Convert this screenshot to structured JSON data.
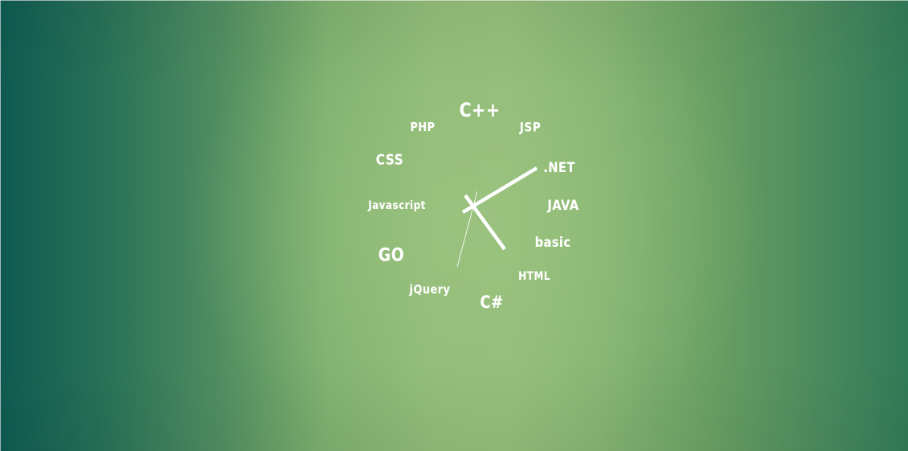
{
  "clock": {
    "labels": {
      "cpp": "C++",
      "jsp": "JSP",
      "dotnet": ".NET",
      "java": "JAVA",
      "basic": "basic",
      "html": "HTML",
      "csharp": "C#",
      "jquery": "jQuery",
      "go": "GO",
      "javascript": "Javascript",
      "css": "CSS",
      "php": "PHP"
    },
    "colors": {
      "text": "#ffffff",
      "hands": "#ffffff"
    }
  }
}
